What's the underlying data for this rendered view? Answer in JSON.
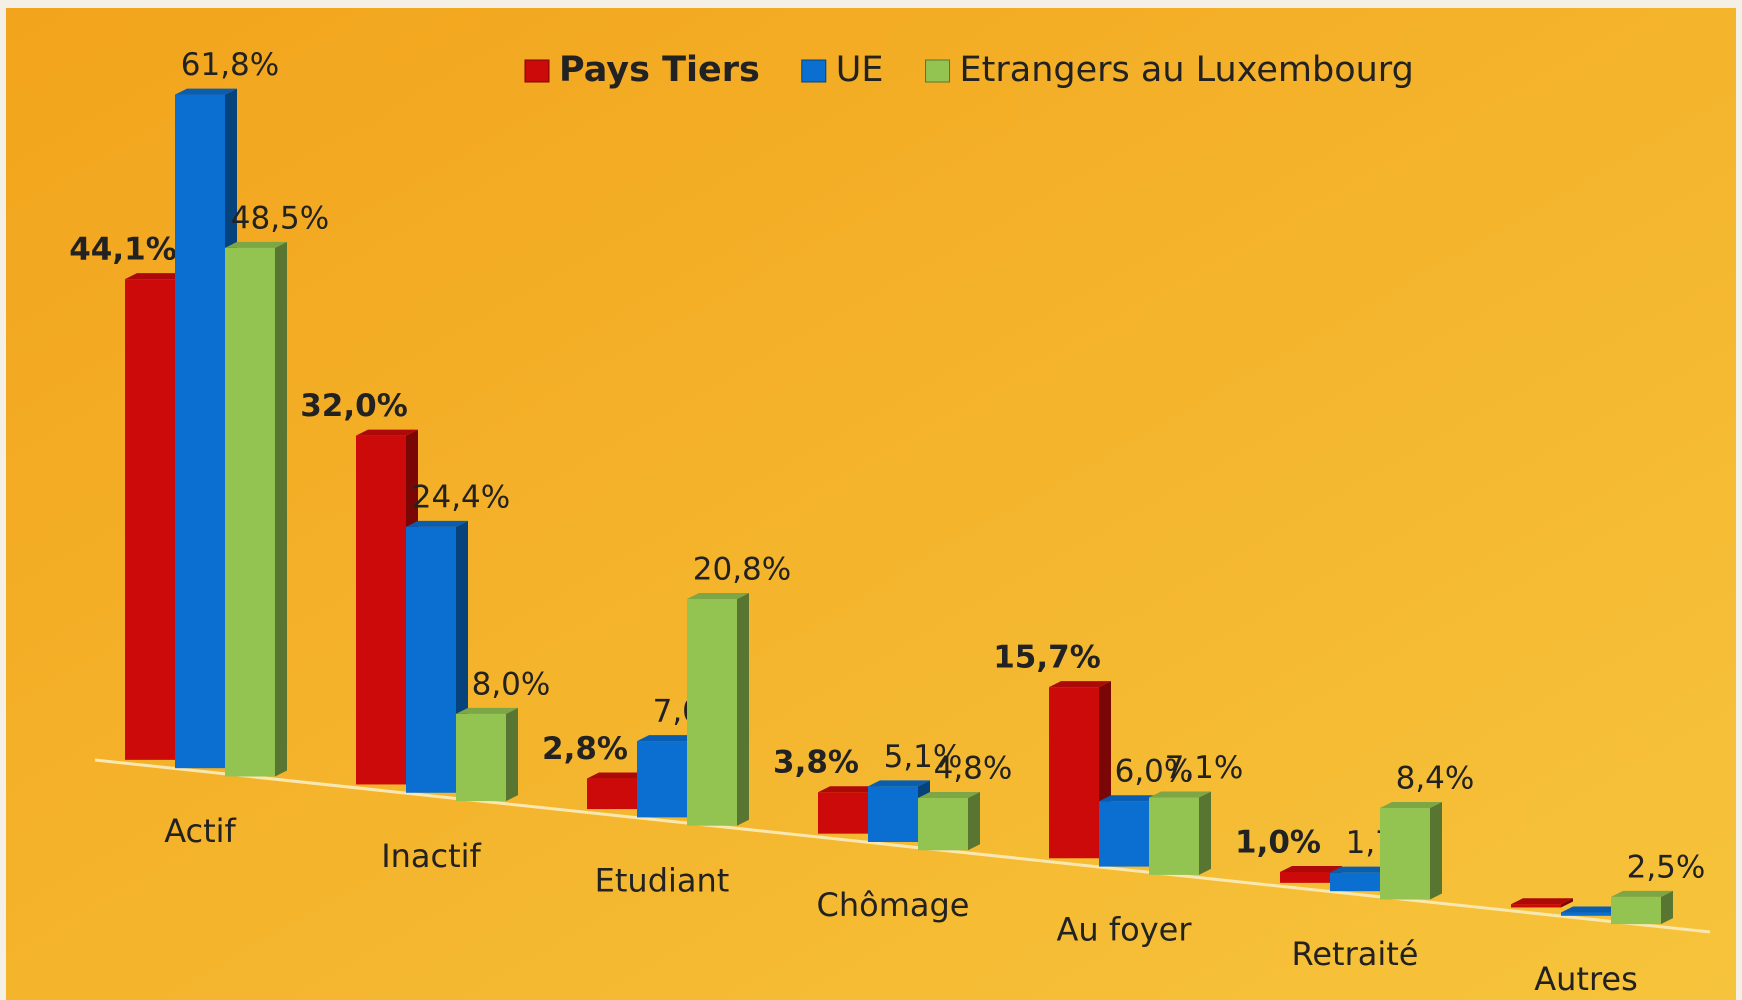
{
  "chart_data": {
    "type": "bar3d",
    "categories": [
      "Actif",
      "Inactif",
      "Etudiant",
      "Chômage",
      "Au foyer",
      "Retraité",
      "Autres"
    ],
    "series": [
      {
        "name": "Pays Tiers",
        "color": "#cc0a0a",
        "values": [
          44.1,
          32.0,
          2.8,
          3.8,
          15.7,
          1.0,
          0.3
        ],
        "value_labels": [
          "44,1%",
          "32,0%",
          "2,8%",
          "3,8%",
          "15,7%",
          "1,0%",
          null
        ]
      },
      {
        "name": "UE",
        "color": "#0a6fd0",
        "values": [
          61.8,
          24.4,
          7.0,
          5.1,
          6.0,
          1.7,
          0.3
        ],
        "value_labels": [
          "61,8%",
          "24,4%",
          "7,0%",
          "5,1%",
          "6,0%",
          "1,7%",
          null
        ]
      },
      {
        "name": "Etrangers au Luxembourg",
        "color": "#93c452",
        "values": [
          48.5,
          8.0,
          20.8,
          4.8,
          7.1,
          8.4,
          2.5
        ],
        "value_labels": [
          "48,5%",
          "8,0%",
          "20,8%",
          "4,8%",
          "7,1%",
          "8,4%",
          "2,5%"
        ]
      }
    ],
    "legend": "top"
  }
}
